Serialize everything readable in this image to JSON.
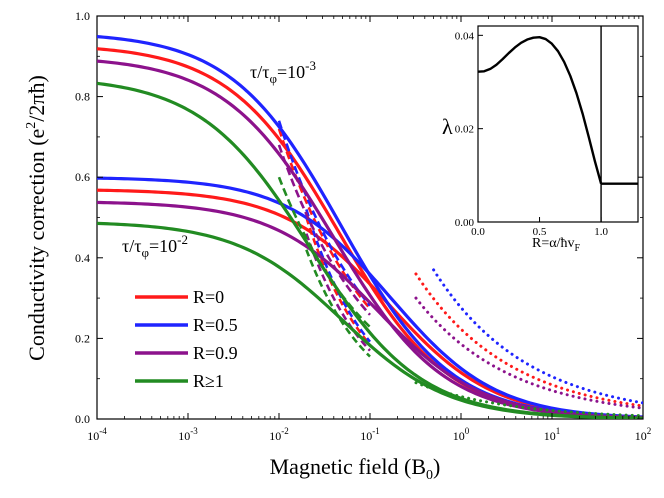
{
  "chart_data": {
    "type": "line",
    "main": {
      "xlabel": {
        "base": "Magnetic field (B",
        "sub": "0",
        "end": ")"
      },
      "ylabel": {
        "base": "Conductivity correction (e",
        "sup": "2",
        "end": "/2πħ)"
      },
      "xscale": "log",
      "xlim": [
        0.0001,
        100
      ],
      "ylim": [
        0.0,
        1.0
      ],
      "x_ticks": [
        {
          "base": "10",
          "exp": "-4"
        },
        {
          "base": "10",
          "exp": "-3"
        },
        {
          "base": "10",
          "exp": "-2"
        },
        {
          "base": "10",
          "exp": "-1"
        },
        {
          "base": "10",
          "exp": "0"
        },
        {
          "base": "10",
          "exp": "1"
        },
        {
          "base": "10",
          "exp": "2"
        }
      ],
      "y_ticks": [
        "0.0",
        "0.2",
        "0.4",
        "0.6",
        "0.8",
        "1.0"
      ],
      "annotations": [
        {
          "id": "tau3",
          "base": "τ/τ",
          "sub": "φ",
          "mid": "=10",
          "sup": "-3"
        },
        {
          "id": "tau2",
          "base": "τ/τ",
          "sub": "φ",
          "mid": "=10",
          "sup": "-2"
        }
      ],
      "legend_position": "bottom-left",
      "series": [
        {
          "name": "R=0",
          "color": "#ff1a1a",
          "set_1e3": {
            "plateau": 0.93,
            "x_half": 0.045,
            "n": 0.72
          },
          "set_1e2": {
            "plateau": 0.57,
            "x_half": 0.16,
            "n": 0.75
          },
          "dashed_1e3": {
            "x_range": [
              0.01,
              0.1
            ],
            "y_at_start": 0.72
          },
          "dashed_1e2": {
            "x_range": [
              0.02,
              0.1
            ],
            "y_at_start": 0.5
          },
          "dotted": {
            "x_range": [
              0.32,
              100
            ],
            "y_at_start": 0.36
          }
        },
        {
          "name": "R=0.5",
          "color": "#1f24ff",
          "set_1e3": {
            "plateau": 0.96,
            "x_half": 0.048,
            "n": 0.72
          },
          "set_1e2": {
            "plateau": 0.6,
            "x_half": 0.17,
            "n": 0.75
          },
          "dashed_1e3": {
            "x_range": [
              0.01,
              0.1
            ],
            "y_at_start": 0.74
          },
          "dashed_1e2": {
            "x_range": [
              0.02,
              0.1
            ],
            "y_at_start": 0.52
          },
          "dotted": {
            "x_range": [
              0.5,
              100
            ],
            "y_at_start": 0.37
          }
        },
        {
          "name": "R=0.9",
          "color": "#8c128c",
          "set_1e3": {
            "plateau": 0.9,
            "x_half": 0.04,
            "n": 0.72
          },
          "set_1e2": {
            "plateau": 0.54,
            "x_half": 0.12,
            "n": 0.75
          },
          "dashed_1e3": {
            "x_range": [
              0.01,
              0.1
            ],
            "y_at_start": 0.68
          },
          "dashed_1e2": {
            "x_range": [
              0.02,
              0.1
            ],
            "y_at_start": 0.46
          },
          "dotted": {
            "x_range": [
              0.32,
              100
            ],
            "y_at_start": 0.3
          }
        },
        {
          "name": "R≥1",
          "color": "#228b22",
          "set_1e3": {
            "plateau": 0.85,
            "x_half": 0.022,
            "n": 0.72
          },
          "set_1e2": {
            "plateau": 0.49,
            "x_half": 0.05,
            "n": 0.75
          },
          "dashed_1e3": {
            "x_range": [
              0.01,
              0.1
            ],
            "y_at_start": 0.6
          },
          "dashed_1e2": {
            "x_range": [
              0.02,
              0.1
            ],
            "y_at_start": 0.42
          },
          "dotted": {
            "x_range": [
              0.32,
              100
            ],
            "y_at_start": 0.09
          }
        }
      ]
    },
    "inset": {
      "ylabel": "λ",
      "xlabel": {
        "base": "R=α/ħv",
        "sub": "F"
      },
      "xlim": [
        0,
        1.3
      ],
      "ylim": [
        0,
        0.042
      ],
      "x_ticks": [
        "0.0",
        "0.5",
        "1.0"
      ],
      "y_ticks": [
        "0.00",
        "0.02",
        "0.04"
      ],
      "vline_x": 1.0,
      "curve": {
        "x": [
          0,
          0.05,
          0.1,
          0.15,
          0.2,
          0.25,
          0.3,
          0.35,
          0.4,
          0.45,
          0.5,
          0.55,
          0.6,
          0.65,
          0.7,
          0.75,
          0.8,
          0.85,
          0.9,
          0.95,
          1.0
        ],
        "y": [
          0.0322,
          0.0323,
          0.0328,
          0.0337,
          0.0349,
          0.0362,
          0.0374,
          0.0384,
          0.0391,
          0.0395,
          0.0396,
          0.0392,
          0.0382,
          0.0366,
          0.0343,
          0.0313,
          0.0276,
          0.0232,
          0.0182,
          0.013,
          0.0082
        ]
      },
      "flat": {
        "x": [
          1.0,
          1.3
        ],
        "y": 0.0082
      }
    }
  }
}
